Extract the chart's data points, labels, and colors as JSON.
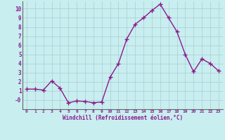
{
  "x": [
    0,
    1,
    2,
    3,
    4,
    5,
    6,
    7,
    8,
    9,
    10,
    11,
    12,
    13,
    14,
    15,
    16,
    17,
    18,
    19,
    20,
    21,
    22,
    23
  ],
  "y": [
    1.2,
    1.2,
    1.1,
    2.1,
    1.3,
    -0.3,
    -0.1,
    -0.15,
    -0.3,
    -0.2,
    2.5,
    4.0,
    6.7,
    8.3,
    9.0,
    9.8,
    10.5,
    9.0,
    7.5,
    5.0,
    3.1,
    4.5,
    4.0,
    3.2
  ],
  "line_color": "#8b1a8b",
  "marker": "+",
  "markersize": 4,
  "linewidth": 1.0,
  "bg_color": "#c8eef0",
  "grid_color": "#aaccd0",
  "xlabel": "Windchill (Refroidissement éolien,°C)",
  "xlabel_color": "#8b1a8b",
  "tick_color": "#8b1a8b",
  "xlim": [
    -0.5,
    23.5
  ],
  "ylim": [
    -1.0,
    10.8
  ],
  "ytick_vals": [
    0,
    1,
    2,
    3,
    4,
    5,
    6,
    7,
    8,
    9,
    10
  ],
  "ytick_labels": [
    "-0",
    "1",
    "2",
    "3",
    "4",
    "5",
    "6",
    "7",
    "8",
    "9",
    "10"
  ],
  "xticks": [
    0,
    1,
    2,
    3,
    4,
    5,
    6,
    7,
    8,
    9,
    10,
    11,
    12,
    13,
    14,
    15,
    16,
    17,
    18,
    19,
    20,
    21,
    22,
    23
  ]
}
